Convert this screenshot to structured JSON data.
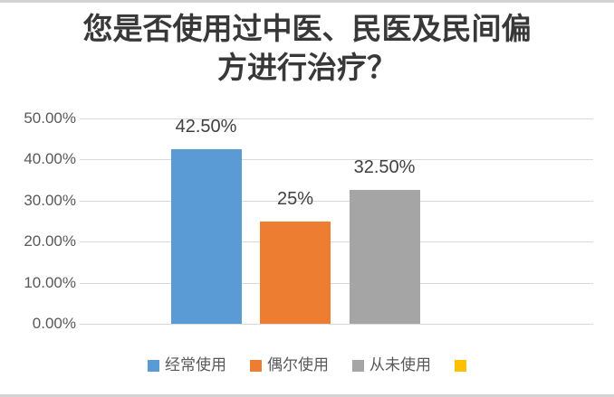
{
  "title": {
    "lines": [
      "您是否使用过中医、民医及民间偏",
      "方进行治疗？"
    ],
    "full": "您是否使用过中医、民医及民间偏方进行治疗？"
  },
  "chart_data": {
    "type": "bar",
    "title": "您是否使用过中医、民医及民间偏方进行治疗？",
    "categories": [
      "经常使用",
      "偶尔使用",
      "从未使用",
      ""
    ],
    "values": [
      42.5,
      25,
      32.5,
      0
    ],
    "data_labels": [
      "42.50%",
      "25%",
      "32.50%",
      ""
    ],
    "colors": [
      "#5B9BD5",
      "#ED7D31",
      "#A5A5A5",
      "#FFC000"
    ],
    "xlabel": "",
    "ylabel": "",
    "ylim": [
      0,
      50
    ],
    "y_tick_labels": [
      "0.00%",
      "10.00%",
      "20.00%",
      "30.00%",
      "40.00%",
      "50.00%"
    ],
    "grid": true,
    "legend": {
      "position": "bottom",
      "entries": [
        {
          "label": "经常使用",
          "color": "#5B9BD5"
        },
        {
          "label": "偶尔使用",
          "color": "#ED7D31"
        },
        {
          "label": "从未使用",
          "color": "#A5A5A5"
        },
        {
          "label": "",
          "color": "#FFC000"
        }
      ]
    }
  },
  "style": {
    "gridline_color": "#D9D9D9",
    "axis_text_color": "#595959",
    "data_label_color": "#404040",
    "title_color": "#383838",
    "frame_strip_color": "#D3D3D3",
    "background_color": "#FFFFFF"
  }
}
